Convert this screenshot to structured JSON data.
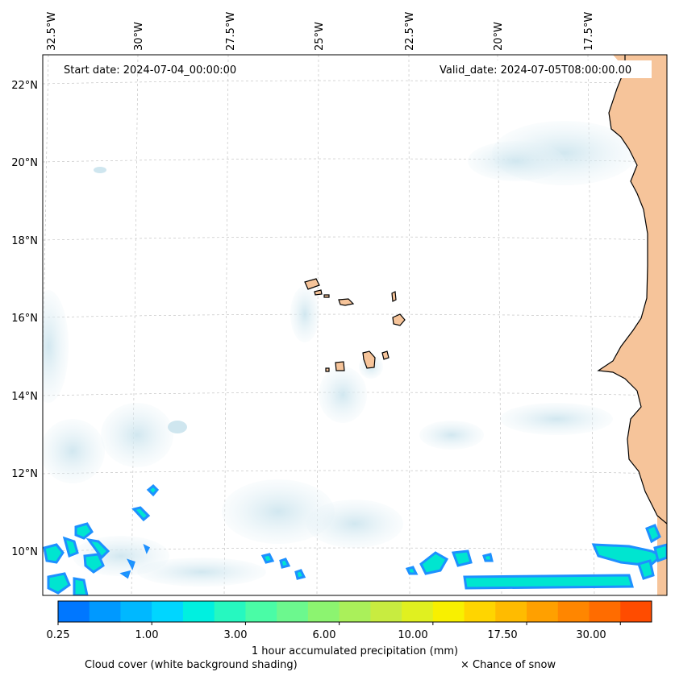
{
  "map": {
    "start_date": "Start date: 2024-07-04_00:00:00",
    "valid_date": "Valid_date: 2024-07-05T08:00:00.00",
    "lon_labels": [
      "32.5°W",
      "30°W",
      "27.5°W",
      "25°W",
      "22.5°W",
      "20°W",
      "17.5°W"
    ],
    "lat_labels": [
      "22°N",
      "20°N",
      "18°N",
      "16°N",
      "14°N",
      "12°N",
      "10°N"
    ],
    "gridlines": "dashed light gray",
    "colors": {
      "land": "#f6c49a",
      "coast": "#000000",
      "cloud": "#d9ecf3",
      "precip_low": "#1e90ff",
      "precip_mid": "#00e5d0"
    }
  },
  "colorbar": {
    "colors": [
      "#0077ff",
      "#0099ff",
      "#00b8ff",
      "#00d6ff",
      "#00f0e0",
      "#26f8c0",
      "#4afca6",
      "#6cf88e",
      "#8cf470",
      "#aaf05a",
      "#c8ec40",
      "#e0f020",
      "#f8f000",
      "#ffd500",
      "#ffbb00",
      "#ffa000",
      "#ff8600",
      "#ff6c00",
      "#ff4c00"
    ],
    "tick_labels": [
      "0.25",
      "1.00",
      "3.00",
      "6.00",
      "10.00",
      "17.50",
      "30.00"
    ],
    "label": "1 hour accumulated precipitation (mm)"
  },
  "footer": {
    "cloud_text": "Cloud cover (white background shading)",
    "snow_text": "× Chance of snow"
  }
}
